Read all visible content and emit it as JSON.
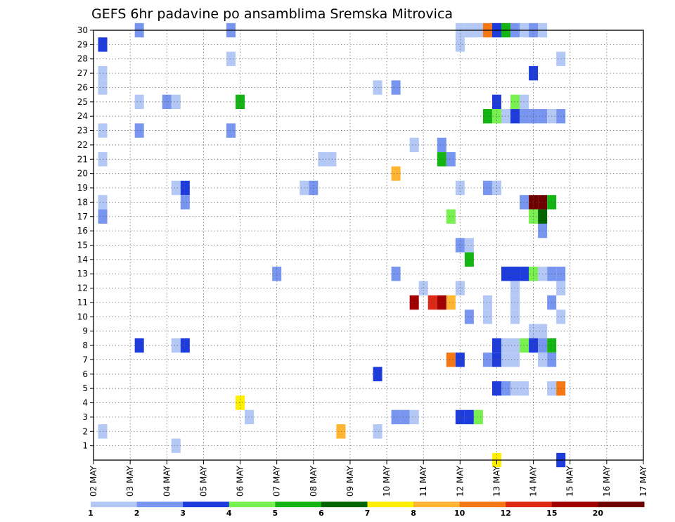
{
  "chart_data": {
    "type": "heatmap",
    "title": "GEFS 6hr padavine po ansamblima Sremska Mitrovica",
    "xlabel": "",
    "ylabel": "",
    "x_tick_labels": [
      "02 MAY",
      "03 MAY",
      "04 MAY",
      "05 MAY",
      "06 MAY",
      "07 MAY",
      "08 MAY",
      "09 MAY",
      "10 MAY",
      "11 MAY",
      "12 MAY",
      "13 MAY",
      "14 MAY",
      "15 MAY",
      "16 MAY",
      "17 MAY"
    ],
    "xlim": [
      0,
      15
    ],
    "y_tick_labels": [
      "1",
      "2",
      "3",
      "4",
      "5",
      "6",
      "7",
      "8",
      "9",
      "10",
      "11",
      "12",
      "13",
      "14",
      "15",
      "16",
      "17",
      "18",
      "19",
      "20",
      "21",
      "22",
      "23",
      "24",
      "25",
      "26",
      "27",
      "28",
      "29",
      "30"
    ],
    "ylim": [
      0,
      30
    ],
    "grid": true,
    "colorbar": {
      "colors": [
        "#b4c8f5",
        "#7896f0",
        "#1e3cdc",
        "#78f050",
        "#14b414",
        "#006400",
        "#fff000",
        "#ffb432",
        "#f57814",
        "#dc2814",
        "#a00000",
        "#6e0000"
      ],
      "labels": [
        "1",
        "2",
        "3",
        "4",
        "5",
        "6",
        "7",
        "8",
        "10",
        "12",
        "15",
        "20"
      ]
    },
    "cells": [
      [
        0.25,
        29,
        3
      ],
      [
        0.25,
        27,
        1
      ],
      [
        0.25,
        26,
        1
      ],
      [
        0.25,
        23,
        1
      ],
      [
        0.25,
        21,
        1
      ],
      [
        0.25,
        18,
        1
      ],
      [
        0.25,
        17,
        2
      ],
      [
        0.25,
        2,
        1
      ],
      [
        1.25,
        30,
        2
      ],
      [
        1.25,
        25,
        1
      ],
      [
        1.25,
        23,
        2
      ],
      [
        1.25,
        8,
        3
      ],
      [
        2.0,
        25,
        2
      ],
      [
        2.25,
        25,
        1
      ],
      [
        2.25,
        19,
        1
      ],
      [
        2.5,
        19,
        3
      ],
      [
        2.5,
        18,
        2
      ],
      [
        2.25,
        8,
        1
      ],
      [
        2.5,
        8,
        3
      ],
      [
        2.25,
        1,
        1
      ],
      [
        3.75,
        30,
        2
      ],
      [
        3.75,
        28,
        1
      ],
      [
        3.75,
        23,
        2
      ],
      [
        4.0,
        25,
        5
      ],
      [
        4.0,
        4,
        7
      ],
      [
        4.25,
        3,
        1
      ],
      [
        5.0,
        13,
        2
      ],
      [
        5.75,
        19,
        1
      ],
      [
        6.0,
        19,
        2
      ],
      [
        6.25,
        21,
        1
      ],
      [
        6.5,
        21,
        1
      ],
      [
        6.75,
        2,
        8
      ],
      [
        7.75,
        26,
        1
      ],
      [
        7.75,
        6,
        3
      ],
      [
        7.75,
        2,
        1
      ],
      [
        8.25,
        26,
        2
      ],
      [
        8.25,
        20,
        8
      ],
      [
        8.25,
        13,
        2
      ],
      [
        8.25,
        3,
        2
      ],
      [
        8.5,
        3,
        2
      ],
      [
        8.75,
        3,
        1
      ],
      [
        8.75,
        22,
        1
      ],
      [
        9.0,
        12,
        1
      ],
      [
        9.25,
        11,
        10
      ],
      [
        8.75,
        11,
        11
      ],
      [
        9.5,
        22,
        2
      ],
      [
        9.5,
        21,
        5
      ],
      [
        9.75,
        21,
        2
      ],
      [
        9.75,
        17,
        4
      ],
      [
        9.75,
        11,
        8
      ],
      [
        9.5,
        11,
        11
      ],
      [
        9.75,
        7,
        9
      ],
      [
        10.0,
        30,
        1
      ],
      [
        10.0,
        29,
        1
      ],
      [
        10.0,
        19,
        1
      ],
      [
        10.0,
        15,
        2
      ],
      [
        10.25,
        15,
        1
      ],
      [
        10.25,
        14,
        5
      ],
      [
        10.0,
        12,
        1
      ],
      [
        10.25,
        10,
        2
      ],
      [
        10.0,
        7,
        3
      ],
      [
        10.0,
        3,
        3
      ],
      [
        10.25,
        3,
        3
      ],
      [
        10.5,
        3,
        4
      ],
      [
        10.25,
        30,
        1
      ],
      [
        10.5,
        30,
        1
      ],
      [
        10.75,
        30,
        9
      ],
      [
        11.0,
        30,
        3
      ],
      [
        11.25,
        30,
        5
      ],
      [
        11.5,
        30,
        2
      ],
      [
        11.0,
        25,
        3
      ],
      [
        10.75,
        24,
        5
      ],
      [
        11.0,
        24,
        4
      ],
      [
        10.75,
        19,
        2
      ],
      [
        11.0,
        19,
        1
      ],
      [
        10.75,
        11,
        1
      ],
      [
        10.75,
        10,
        1
      ],
      [
        11.0,
        8,
        3
      ],
      [
        11.25,
        8,
        1
      ],
      [
        10.75,
        7,
        2
      ],
      [
        11.0,
        7,
        3
      ],
      [
        11.0,
        5,
        3
      ],
      [
        11.25,
        5,
        2
      ],
      [
        11.0,
        0,
        7
      ],
      [
        11.5,
        25,
        4
      ],
      [
        11.25,
        24,
        1
      ],
      [
        11.75,
        25,
        1
      ],
      [
        11.5,
        24,
        3
      ],
      [
        11.75,
        24,
        2
      ],
      [
        12.0,
        24,
        2
      ],
      [
        12.25,
        24,
        2
      ],
      [
        12.5,
        24,
        1
      ],
      [
        12.75,
        24,
        2
      ],
      [
        11.5,
        13,
        3
      ],
      [
        11.5,
        12,
        1
      ],
      [
        11.5,
        11,
        1
      ],
      [
        11.5,
        10,
        1
      ],
      [
        11.25,
        13,
        3
      ],
      [
        11.5,
        8,
        1
      ],
      [
        11.25,
        7,
        1
      ],
      [
        11.5,
        7,
        1
      ],
      [
        11.5,
        5,
        1
      ],
      [
        11.75,
        5,
        1
      ],
      [
        11.75,
        30,
        1
      ],
      [
        12.0,
        30,
        2
      ],
      [
        12.25,
        30,
        1
      ],
      [
        12.0,
        27,
        3
      ],
      [
        12.75,
        28,
        1
      ],
      [
        11.75,
        18,
        2
      ],
      [
        12.0,
        18,
        12
      ],
      [
        12.25,
        18,
        12
      ],
      [
        12.5,
        18,
        5
      ],
      [
        12.0,
        17,
        4
      ],
      [
        12.25,
        17,
        6
      ],
      [
        12.25,
        16,
        2
      ],
      [
        11.75,
        13,
        3
      ],
      [
        12.0,
        13,
        4
      ],
      [
        12.25,
        13,
        1
      ],
      [
        12.5,
        13,
        2
      ],
      [
        12.75,
        13,
        2
      ],
      [
        12.75,
        12,
        1
      ],
      [
        12.5,
        11,
        2
      ],
      [
        12.75,
        10,
        1
      ],
      [
        12.0,
        9,
        1
      ],
      [
        12.25,
        9,
        1
      ],
      [
        11.75,
        8,
        4
      ],
      [
        12.0,
        8,
        3
      ],
      [
        12.25,
        8,
        2
      ],
      [
        12.5,
        8,
        5
      ],
      [
        12.25,
        7,
        1
      ],
      [
        12.5,
        7,
        2
      ],
      [
        12.5,
        5,
        1
      ],
      [
        12.75,
        5,
        9
      ],
      [
        12.75,
        0,
        3
      ]
    ]
  }
}
